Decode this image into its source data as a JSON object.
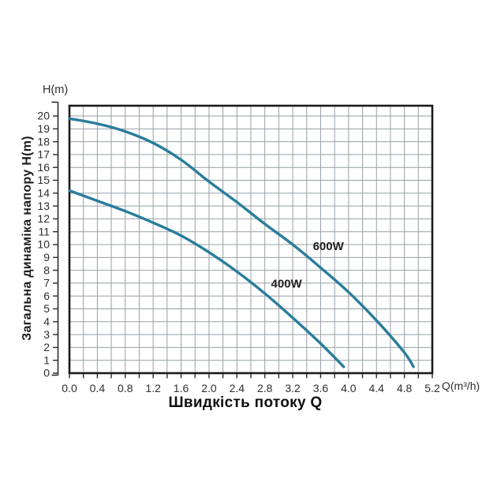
{
  "chart_data": {
    "type": "line",
    "title": "",
    "xlabel": "Швидкість потоку Q",
    "ylabel": "Загальна динаміка напору H(m)",
    "x_unit_label": "Q(m³/h)",
    "y_unit_label": "H(m)",
    "xlim": [
      0,
      5.2
    ],
    "ylim": [
      0,
      20.8
    ],
    "grid": true,
    "x_minor_grid_step": 0.2,
    "y_grid_step": 1,
    "legend_position": "inline-annotations",
    "x_tick_labels": [
      "0.0",
      "0.4",
      "0.8",
      "1.2",
      "1.6",
      "2.0",
      "2.4",
      "2.8",
      "3.2",
      "3.6",
      "4.0",
      "4.4",
      "4.8",
      "5.2"
    ],
    "x_tick_values": [
      0,
      0.4,
      0.8,
      1.2,
      1.6,
      2.0,
      2.4,
      2.8,
      3.2,
      3.6,
      4.0,
      4.4,
      4.8,
      5.2
    ],
    "y_tick_labels": [
      "0",
      "1",
      "2",
      "3",
      "4",
      "5",
      "6",
      "7",
      "8",
      "9",
      "10",
      "11",
      "12",
      "13",
      "14",
      "15",
      "16",
      "17",
      "18",
      "19",
      "20"
    ],
    "y_tick_values": [
      0,
      1,
      2,
      3,
      4,
      5,
      6,
      7,
      8,
      9,
      10,
      11,
      12,
      13,
      14,
      15,
      16,
      17,
      18,
      19,
      20
    ],
    "series": [
      {
        "name": "600W",
        "color": "#2a7d9b",
        "label_at": [
          3.71,
          9.9
        ],
        "points": [
          [
            0.0,
            19.8
          ],
          [
            0.4,
            19.4
          ],
          [
            0.8,
            18.8
          ],
          [
            1.2,
            17.9
          ],
          [
            1.6,
            16.6
          ],
          [
            2.0,
            14.9
          ],
          [
            2.4,
            13.3
          ],
          [
            2.8,
            11.6
          ],
          [
            3.2,
            10.0
          ],
          [
            3.6,
            8.2
          ],
          [
            4.0,
            6.3
          ],
          [
            4.4,
            4.1
          ],
          [
            4.8,
            1.6
          ],
          [
            4.93,
            0.5
          ]
        ]
      },
      {
        "name": "400W",
        "color": "#2a7d9b",
        "label_at": [
          3.11,
          7.0
        ],
        "points": [
          [
            0.0,
            14.2
          ],
          [
            0.4,
            13.4
          ],
          [
            0.8,
            12.6
          ],
          [
            1.2,
            11.7
          ],
          [
            1.6,
            10.7
          ],
          [
            2.0,
            9.4
          ],
          [
            2.4,
            7.9
          ],
          [
            2.8,
            6.2
          ],
          [
            3.2,
            4.3
          ],
          [
            3.6,
            2.3
          ],
          [
            3.93,
            0.5
          ]
        ]
      }
    ],
    "colors": {
      "background": "#ffffff",
      "frame": "#1b1b1b",
      "grid": "#98a0a6",
      "ruler": "#2b2b2b",
      "tick_text": "#2e2e2e",
      "series_label_text": "#1f1f1f"
    }
  }
}
